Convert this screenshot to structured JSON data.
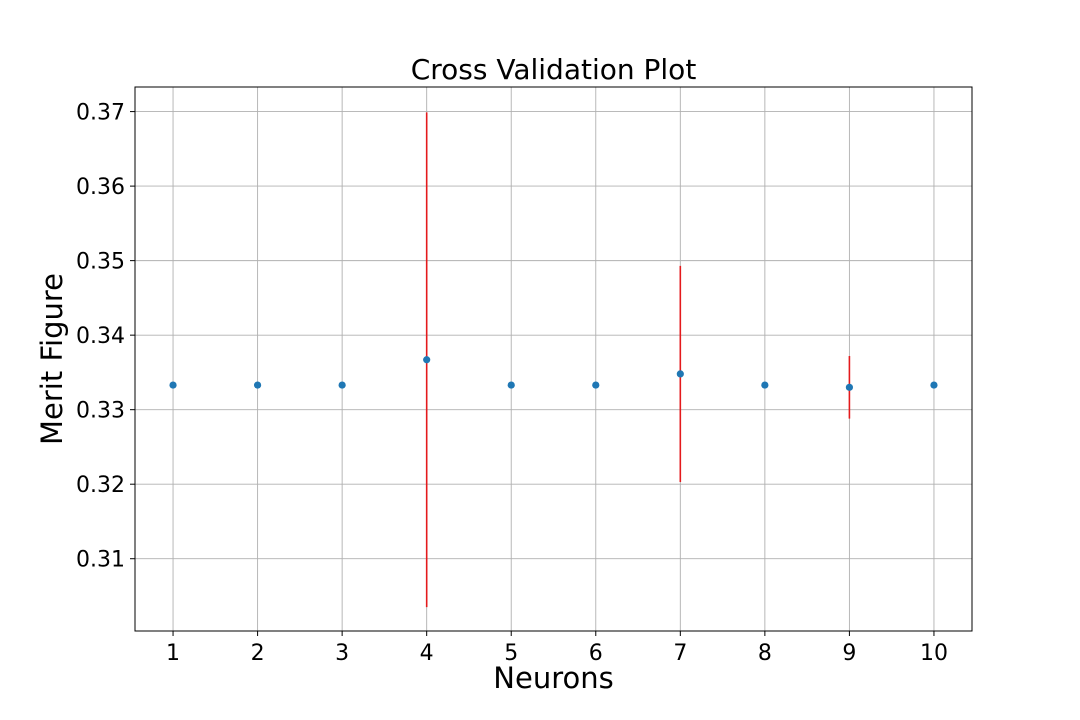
{
  "chart_data": {
    "type": "scatter",
    "title": "Cross Validation Plot",
    "xlabel": "Neurons",
    "ylabel": "Merit Figure",
    "xlim": [
      0.55,
      10.45
    ],
    "ylim": [
      0.3003,
      0.3733
    ],
    "xticks": [
      1,
      2,
      3,
      4,
      5,
      6,
      7,
      8,
      9,
      10
    ],
    "xtick_labels": [
      "1",
      "2",
      "3",
      "4",
      "5",
      "6",
      "7",
      "8",
      "9",
      "10"
    ],
    "yticks": [
      0.31,
      0.32,
      0.33,
      0.34,
      0.35,
      0.36,
      0.37
    ],
    "ytick_labels": [
      "0.31",
      "0.32",
      "0.33",
      "0.34",
      "0.35",
      "0.36",
      "0.37"
    ],
    "grid": true,
    "marker_color": "#1f77b4",
    "errorbar_color": "#e41a1c",
    "series": [
      {
        "x": [
          1,
          2,
          3,
          4,
          5,
          6,
          7,
          8,
          9,
          10
        ],
        "y": [
          0.3333,
          0.3333,
          0.3333,
          0.3367,
          0.3333,
          0.3333,
          0.3348,
          0.3333,
          0.333,
          0.3333
        ],
        "yerr": [
          0,
          0,
          0,
          0.0332,
          0,
          0,
          0.0145,
          0,
          0.0042,
          0
        ]
      }
    ]
  }
}
